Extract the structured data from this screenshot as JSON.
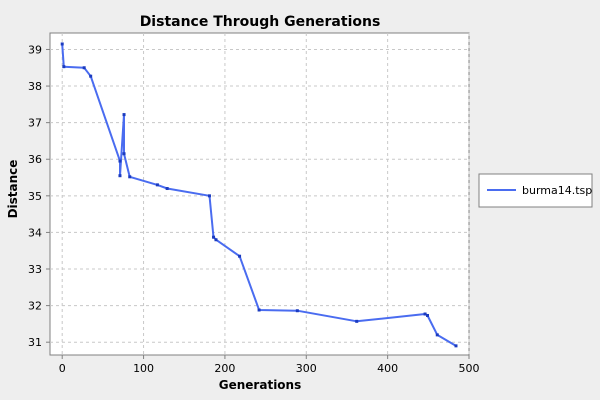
{
  "chart_data": {
    "type": "line",
    "title": "Distance Through Generations",
    "xlabel": "Generations",
    "ylabel": "Distance",
    "xlim": [
      -15,
      500
    ],
    "ylim": [
      30.65,
      39.45
    ],
    "xticks": [
      0,
      100,
      200,
      300,
      400,
      500
    ],
    "yticks": [
      31,
      32,
      33,
      34,
      35,
      36,
      37,
      38,
      39
    ],
    "grid": true,
    "legend": "right",
    "colors": {
      "series": "#4a6cf0",
      "marker": "#1b3bbf",
      "grid": "#c8c8c8",
      "plot_bg": "#ffffff"
    },
    "series": [
      {
        "name": "burma14.tsp",
        "x": [
          0,
          2,
          27,
          35,
          71,
          71,
          76,
          76,
          83,
          117,
          129,
          181,
          186,
          189,
          218,
          242,
          289,
          362,
          446,
          449,
          461,
          484
        ],
        "y": [
          39.15,
          38.53,
          38.5,
          38.27,
          35.95,
          35.55,
          37.22,
          36.15,
          35.52,
          35.3,
          35.2,
          35.0,
          33.87,
          33.8,
          33.35,
          31.88,
          31.86,
          31.57,
          31.77,
          31.73,
          31.2,
          30.9
        ]
      }
    ]
  }
}
